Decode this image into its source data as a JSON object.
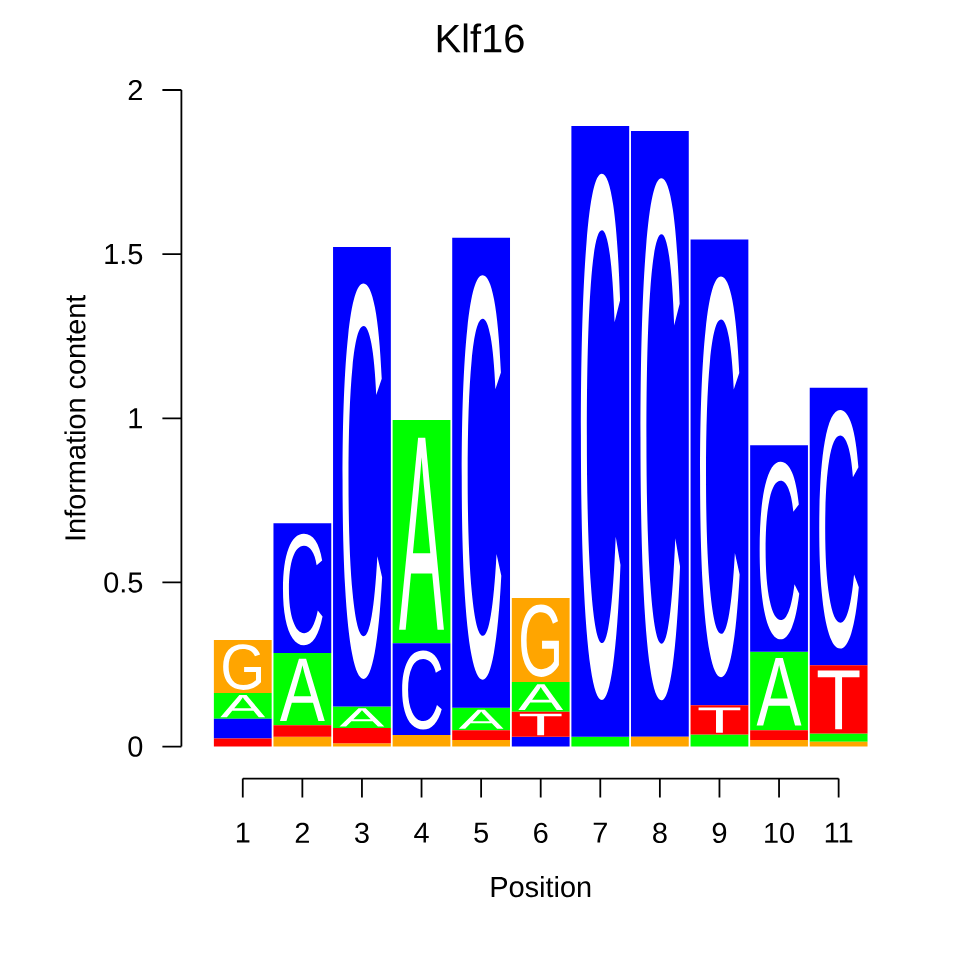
{
  "chart_data": {
    "type": "bar",
    "title": "Klf16",
    "xlabel": "Position",
    "ylabel": "Information content",
    "categories": [
      "1",
      "2",
      "3",
      "4",
      "5",
      "6",
      "7",
      "8",
      "9",
      "10",
      "11"
    ],
    "ylim": [
      0,
      2
    ],
    "yticks": [
      0,
      0.5,
      1,
      1.5,
      2
    ],
    "series": [
      {
        "name": "A",
        "color": "#00ff00",
        "values": [
          0.078,
          0.22,
          0.065,
          0.68,
          0.068,
          0.091,
          0.03,
          null,
          0.037,
          0.239,
          0.025
        ],
        "base": [
          0.085,
          0.065,
          0.057,
          0.315,
          0.05,
          0.106,
          0,
          null,
          0,
          0.05,
          0.015
        ]
      },
      {
        "name": "C",
        "color": "#0000ff",
        "values": [
          0.06,
          0.395,
          1.4,
          0.28,
          1.432,
          0.03,
          1.86,
          1.845,
          1.419,
          0.629,
          0.845
        ],
        "base": [
          0.025,
          0.285,
          0.122,
          0.035,
          0.118,
          0,
          0.03,
          0.03,
          0.126,
          0.289,
          0.248
        ]
      },
      {
        "name": "G",
        "color": "#ffa500",
        "values": [
          0.162,
          0.03,
          0.01,
          0.035,
          0.02,
          0.256,
          null,
          0.03,
          null,
          0.02,
          0.015
        ],
        "base": [
          0.163,
          0,
          0,
          0,
          0,
          0.197,
          null,
          0,
          null,
          0,
          0
        ]
      },
      {
        "name": "T",
        "color": "#ff0000",
        "values": [
          0.025,
          0.035,
          0.047,
          null,
          0.03,
          0.076,
          null,
          null,
          0.089,
          0.03,
          0.208
        ],
        "base": [
          0,
          0.03,
          0.01,
          null,
          0.02,
          0.03,
          null,
          null,
          0.037,
          0.02,
          0.04
        ]
      }
    ]
  }
}
